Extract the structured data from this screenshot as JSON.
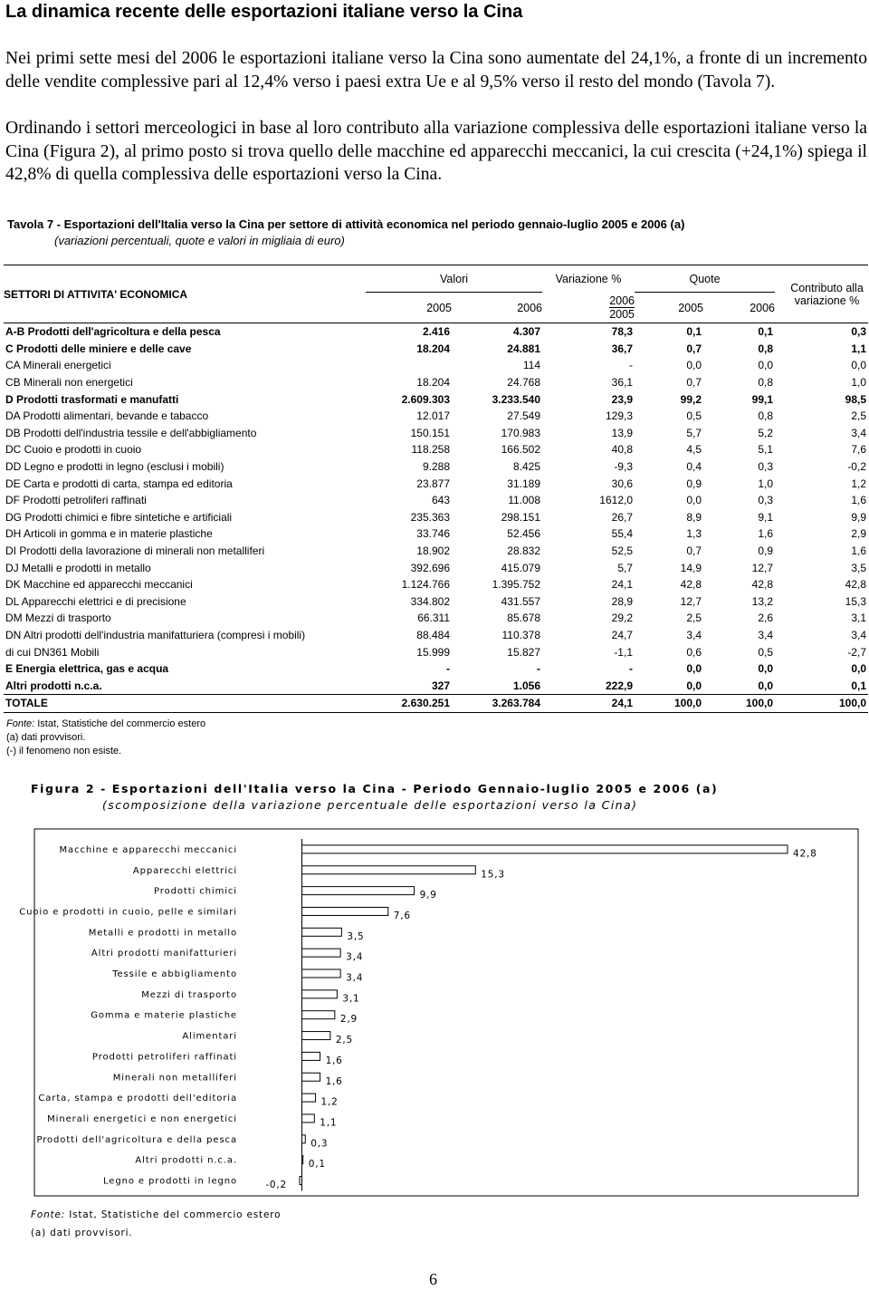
{
  "title": "La dinamica recente delle esportazioni italiane verso la Cina",
  "paragraphs": [
    "Nei primi sette mesi del 2006 le esportazioni italiane verso la Cina sono aumentate del 24,1%, a fronte di un incremento delle vendite complessive pari al 12,4% verso i paesi extra Ue e al 9,5% verso il resto del mondo (Tavola 7).",
    "Ordinando i settori merceologici in base al loro contributo alla variazione complessiva delle esportazioni italiane verso la Cina (Figura 2), al primo posto si trova quello delle macchine ed apparecchi meccanici, la cui crescita (+24,1%) spiega il 42,8% di quella complessiva delle esportazioni verso la Cina."
  ],
  "table": {
    "title": "Tavola 7 - Esportazioni dell'Italia verso la Cina per settore di attività economica nel periodo gennaio-luglio 2005 e 2006 (a)",
    "subtitle": "(variazioni percentuali, quote e valori in migliaia di euro)",
    "header": {
      "sector": "SETTORI DI ATTIVITA' ECONOMICA",
      "values": "Valori",
      "change": "Variazione %",
      "shares": "Quote",
      "contribution": "Contributo alla variazione %",
      "years": [
        "2005",
        "2006"
      ],
      "change_years": [
        "2006",
        "2005"
      ]
    },
    "rows": [
      {
        "bold": true,
        "cells": [
          "A-B Prodotti dell'agricoltura e della pesca",
          "2.416",
          "4.307",
          "78,3",
          "0,1",
          "0,1",
          "0,3"
        ]
      },
      {
        "bold": true,
        "cells": [
          "C Prodotti delle miniere e delle cave",
          "18.204",
          "24.881",
          "36,7",
          "0,7",
          "0,8",
          "1,1"
        ]
      },
      {
        "bold": false,
        "cells": [
          "CA Minerali energetici",
          null,
          "114",
          "-",
          "0,0",
          "0,0",
          "0,0"
        ]
      },
      {
        "bold": false,
        "cells": [
          "CB Minerali non energetici",
          "18.204",
          "24.768",
          "36,1",
          "0,7",
          "0,8",
          "1,0"
        ]
      },
      {
        "bold": true,
        "cells": [
          "D Prodotti trasformati e manufatti",
          "2.609.303",
          "3.233.540",
          "23,9",
          "99,2",
          "99,1",
          "98,5"
        ]
      },
      {
        "bold": false,
        "cells": [
          "DA Prodotti alimentari, bevande e tabacco",
          "12.017",
          "27.549",
          "129,3",
          "0,5",
          "0,8",
          "2,5"
        ]
      },
      {
        "bold": false,
        "cells": [
          "DB Prodotti dell'industria tessile e dell'abbigliamento",
          "150.151",
          "170.983",
          "13,9",
          "5,7",
          "5,2",
          "3,4"
        ]
      },
      {
        "bold": false,
        "cells": [
          "DC Cuoio e prodotti in cuoio",
          "118.258",
          "166.502",
          "40,8",
          "4,5",
          "5,1",
          "7,6"
        ]
      },
      {
        "bold": false,
        "cells": [
          "DD Legno e prodotti in legno (esclusi i mobili)",
          "9.288",
          "8.425",
          "-9,3",
          "0,4",
          "0,3",
          "-0,2"
        ]
      },
      {
        "bold": false,
        "cells": [
          "DE Carta e prodotti di carta, stampa ed editoria",
          "23.877",
          "31.189",
          "30,6",
          "0,9",
          "1,0",
          "1,2"
        ]
      },
      {
        "bold": false,
        "cells": [
          "DF Prodotti petroliferi raffinati",
          "643",
          "11.008",
          "1612,0",
          "0,0",
          "0,3",
          "1,6"
        ]
      },
      {
        "bold": false,
        "cells": [
          "DG Prodotti chimici e fibre sintetiche e artificiali",
          "235.363",
          "298.151",
          "26,7",
          "8,9",
          "9,1",
          "9,9"
        ]
      },
      {
        "bold": false,
        "cells": [
          "DH Articoli in gomma e in materie plastiche",
          "33.746",
          "52.456",
          "55,4",
          "1,3",
          "1,6",
          "2,9"
        ]
      },
      {
        "bold": false,
        "cells": [
          "DI Prodotti della lavorazione di minerali non metalliferi",
          "18.902",
          "28.832",
          "52,5",
          "0,7",
          "0,9",
          "1,6"
        ]
      },
      {
        "bold": false,
        "cells": [
          "DJ Metalli e prodotti in metallo",
          "392.696",
          "415.079",
          "5,7",
          "14,9",
          "12,7",
          "3,5"
        ]
      },
      {
        "bold": false,
        "cells": [
          "DK Macchine ed apparecchi meccanici",
          "1.124.766",
          "1.395.752",
          "24,1",
          "42,8",
          "42,8",
          "42,8"
        ]
      },
      {
        "bold": false,
        "cells": [
          "DL Apparecchi elettrici e di precisione",
          "334.802",
          "431.557",
          "28,9",
          "12,7",
          "13,2",
          "15,3"
        ]
      },
      {
        "bold": false,
        "cells": [
          "DM Mezzi di trasporto",
          "66.311",
          "85.678",
          "29,2",
          "2,5",
          "2,6",
          "3,1"
        ]
      },
      {
        "bold": false,
        "cells": [
          "DN Altri prodotti dell'industria manifatturiera (compresi i mobili)",
          "88.484",
          "110.378",
          "24,7",
          "3,4",
          "3,4",
          "3,4"
        ]
      },
      {
        "bold": false,
        "cells": [
          "di cui DN361 Mobili",
          "15.999",
          "15.827",
          "-1,1",
          "0,6",
          "0,5",
          "-2,7"
        ]
      },
      {
        "bold": true,
        "cells": [
          "E Energia elettrica, gas e acqua",
          "-",
          "-",
          "-",
          "0,0",
          "0,0",
          "0,0"
        ]
      },
      {
        "bold": true,
        "cells": [
          "Altri prodotti n.c.a.",
          "327",
          "1.056",
          "222,9",
          "0,0",
          "0,0",
          "0,1"
        ]
      },
      {
        "bold": true,
        "total": true,
        "cells": [
          "TOTALE",
          "2.630.251",
          "3.263.784",
          "24,1",
          "100,0",
          "100,0",
          "100,0"
        ]
      }
    ],
    "source_label": "Fonte:",
    "source": "Istat, Statistiche del commercio estero",
    "footnotes": [
      "(a) dati provvisori.",
      "(-) il fenomeno non esiste."
    ]
  },
  "chart_data": {
    "type": "hbar",
    "title": "Figura 2 - Esportazioni dell'Italia verso la Cina - Periodo Gennaio-luglio 2005 e 2006 (a)",
    "subtitle": "(scomposizione della variazione percentuale delle esportazioni verso la Cina)",
    "categories": [
      "Macchine e apparecchi meccanici",
      "Apparecchi elettrici",
      "Prodotti chimici",
      "Cuoio e prodotti in cuoio, pelle e similari",
      "Metalli e prodotti in metallo",
      "Altri prodotti manifatturieri",
      "Tessile e abbigliamento",
      "Mezzi di trasporto",
      "Gomma e materie plastiche",
      "Alimentari",
      "Prodotti petroliferi raffinati",
      "Minerali non metalliferi",
      "Carta, stampa e prodotti dell'editoria",
      "Minerali energetici e non energetici",
      "Prodotti dell'agricoltura e della pesca",
      "Altri prodotti n.c.a.",
      "Legno e prodotti in legno"
    ],
    "values": [
      42.8,
      15.3,
      9.9,
      7.6,
      3.5,
      3.4,
      3.4,
      3.1,
      2.9,
      2.5,
      1.6,
      1.6,
      1.2,
      1.1,
      0.3,
      0.1,
      -0.2
    ],
    "value_labels": [
      "42,8",
      "15,3",
      "9,9",
      "7,6",
      "3,5",
      "3,4",
      "3,4",
      "3,1",
      "2,9",
      "2,5",
      "1,6",
      "1,6",
      "1,2",
      "1,1",
      "0,3",
      "0,1",
      "-0,2"
    ],
    "color": "#ffffff",
    "source_label": "Fonte:",
    "source": "Istat, Statistiche del commercio estero",
    "footnote": "(a) dati provvisori."
  },
  "page_number": "6"
}
